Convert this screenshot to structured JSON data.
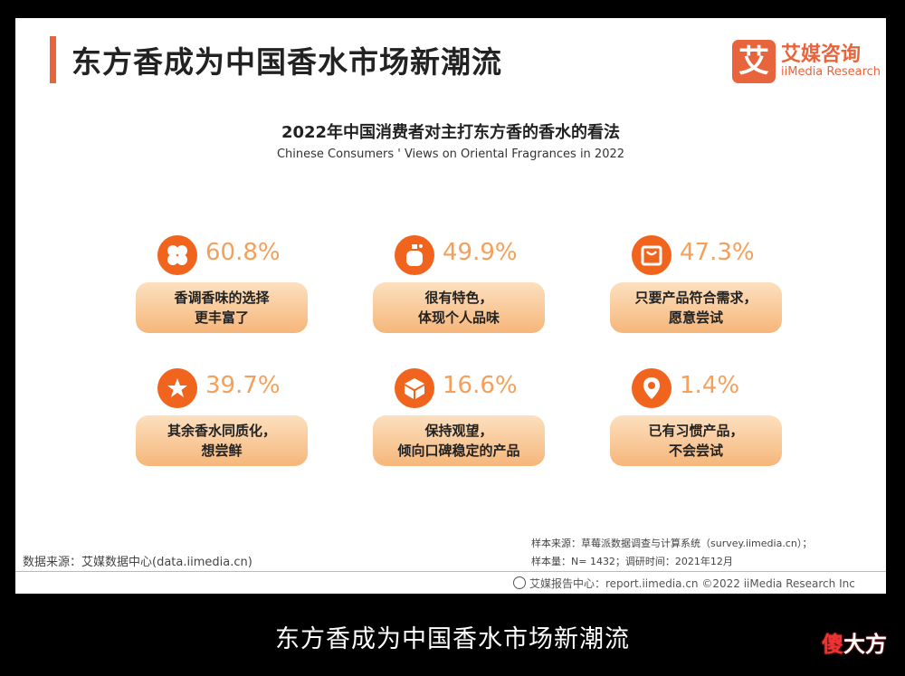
{
  "header": {
    "title": "东方香成为中国香水市场新潮流",
    "logo_mark": "艾",
    "logo_cn": "艾媒咨询",
    "logo_en": "iiMedia Research"
  },
  "chart": {
    "title": "2022年中国消费者对主打东方香的香水的看法",
    "subtitle": "Chinese Consumers ' Views on Oriental Fragrances in 2022"
  },
  "items": [
    {
      "percent": "60.8%",
      "line1": "香调香味的选择",
      "line2": "更丰富了",
      "icon": "clover-icon"
    },
    {
      "percent": "49.9%",
      "line1": "很有特色，",
      "line2": "体现个人品味",
      "icon": "perfume-bottle-icon"
    },
    {
      "percent": "47.3%",
      "line1": "只要产品符合需求，",
      "line2": "愿意尝试",
      "icon": "shopping-bag-icon"
    },
    {
      "percent": "39.7%",
      "line1": "其余香水同质化，",
      "line2": "想尝鲜",
      "icon": "star-icon"
    },
    {
      "percent": "16.6%",
      "line1": "保持观望，",
      "line2": "倾向口碑稳定的产品",
      "icon": "cube-icon"
    },
    {
      "percent": "1.4%",
      "line1": "已有习惯产品，",
      "line2": "不会尝试",
      "icon": "location-pin-icon"
    }
  ],
  "source": {
    "left": "数据来源：艾媒数据中心(data.iimedia.cn)",
    "right_line1": "样本来源：草莓派数据调查与计算系统（survey.iimedia.cn）；",
    "right_line2": "样本量：N= 1432；调研时间：2021年12月"
  },
  "footer": {
    "text": "艾媒报告中心：report.iimedia.cn    ©2022  iiMedia Research  Inc"
  },
  "caption": "东方香成为中国香水市场新潮流",
  "watermark": {
    "part1": "傻",
    "part2": "大方"
  },
  "colors": {
    "accent": "#e8643c",
    "icon_bg": "#f0641e",
    "percent": "#f5a05a"
  }
}
